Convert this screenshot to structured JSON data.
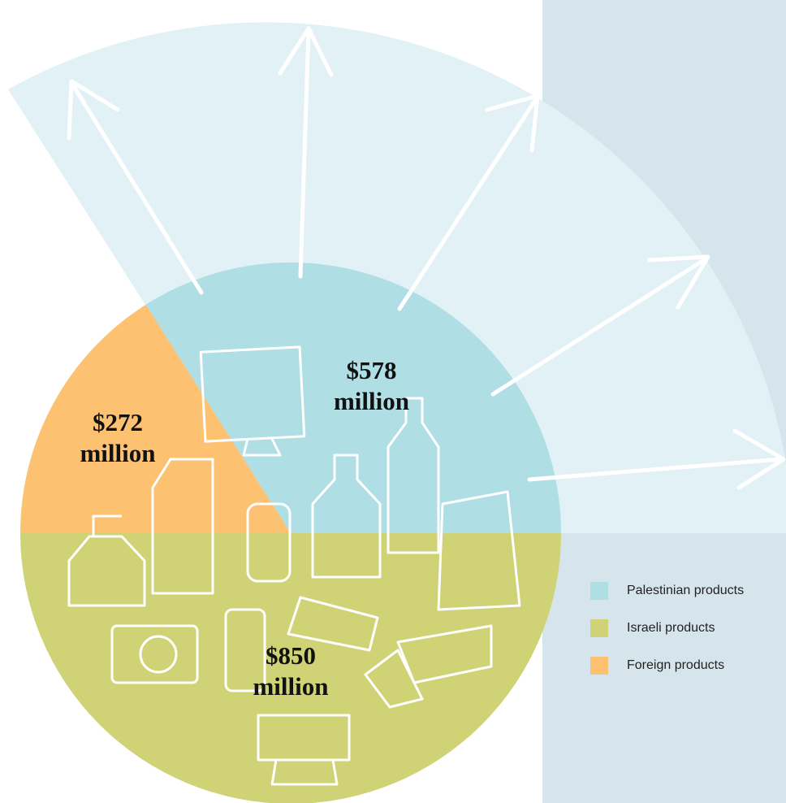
{
  "chart_data": {
    "type": "pie",
    "categories": [
      "Palestinian products",
      "Israeli products",
      "Foreign products"
    ],
    "values": [
      578,
      850,
      272
    ],
    "value_labels": [
      "$578 million",
      "$850 million",
      "$272 million"
    ],
    "colors": [
      "#afdee4",
      "#cfd275",
      "#fdc172"
    ],
    "startangle": 122.4,
    "counterclock": false,
    "legend": "lower right"
  }
}
